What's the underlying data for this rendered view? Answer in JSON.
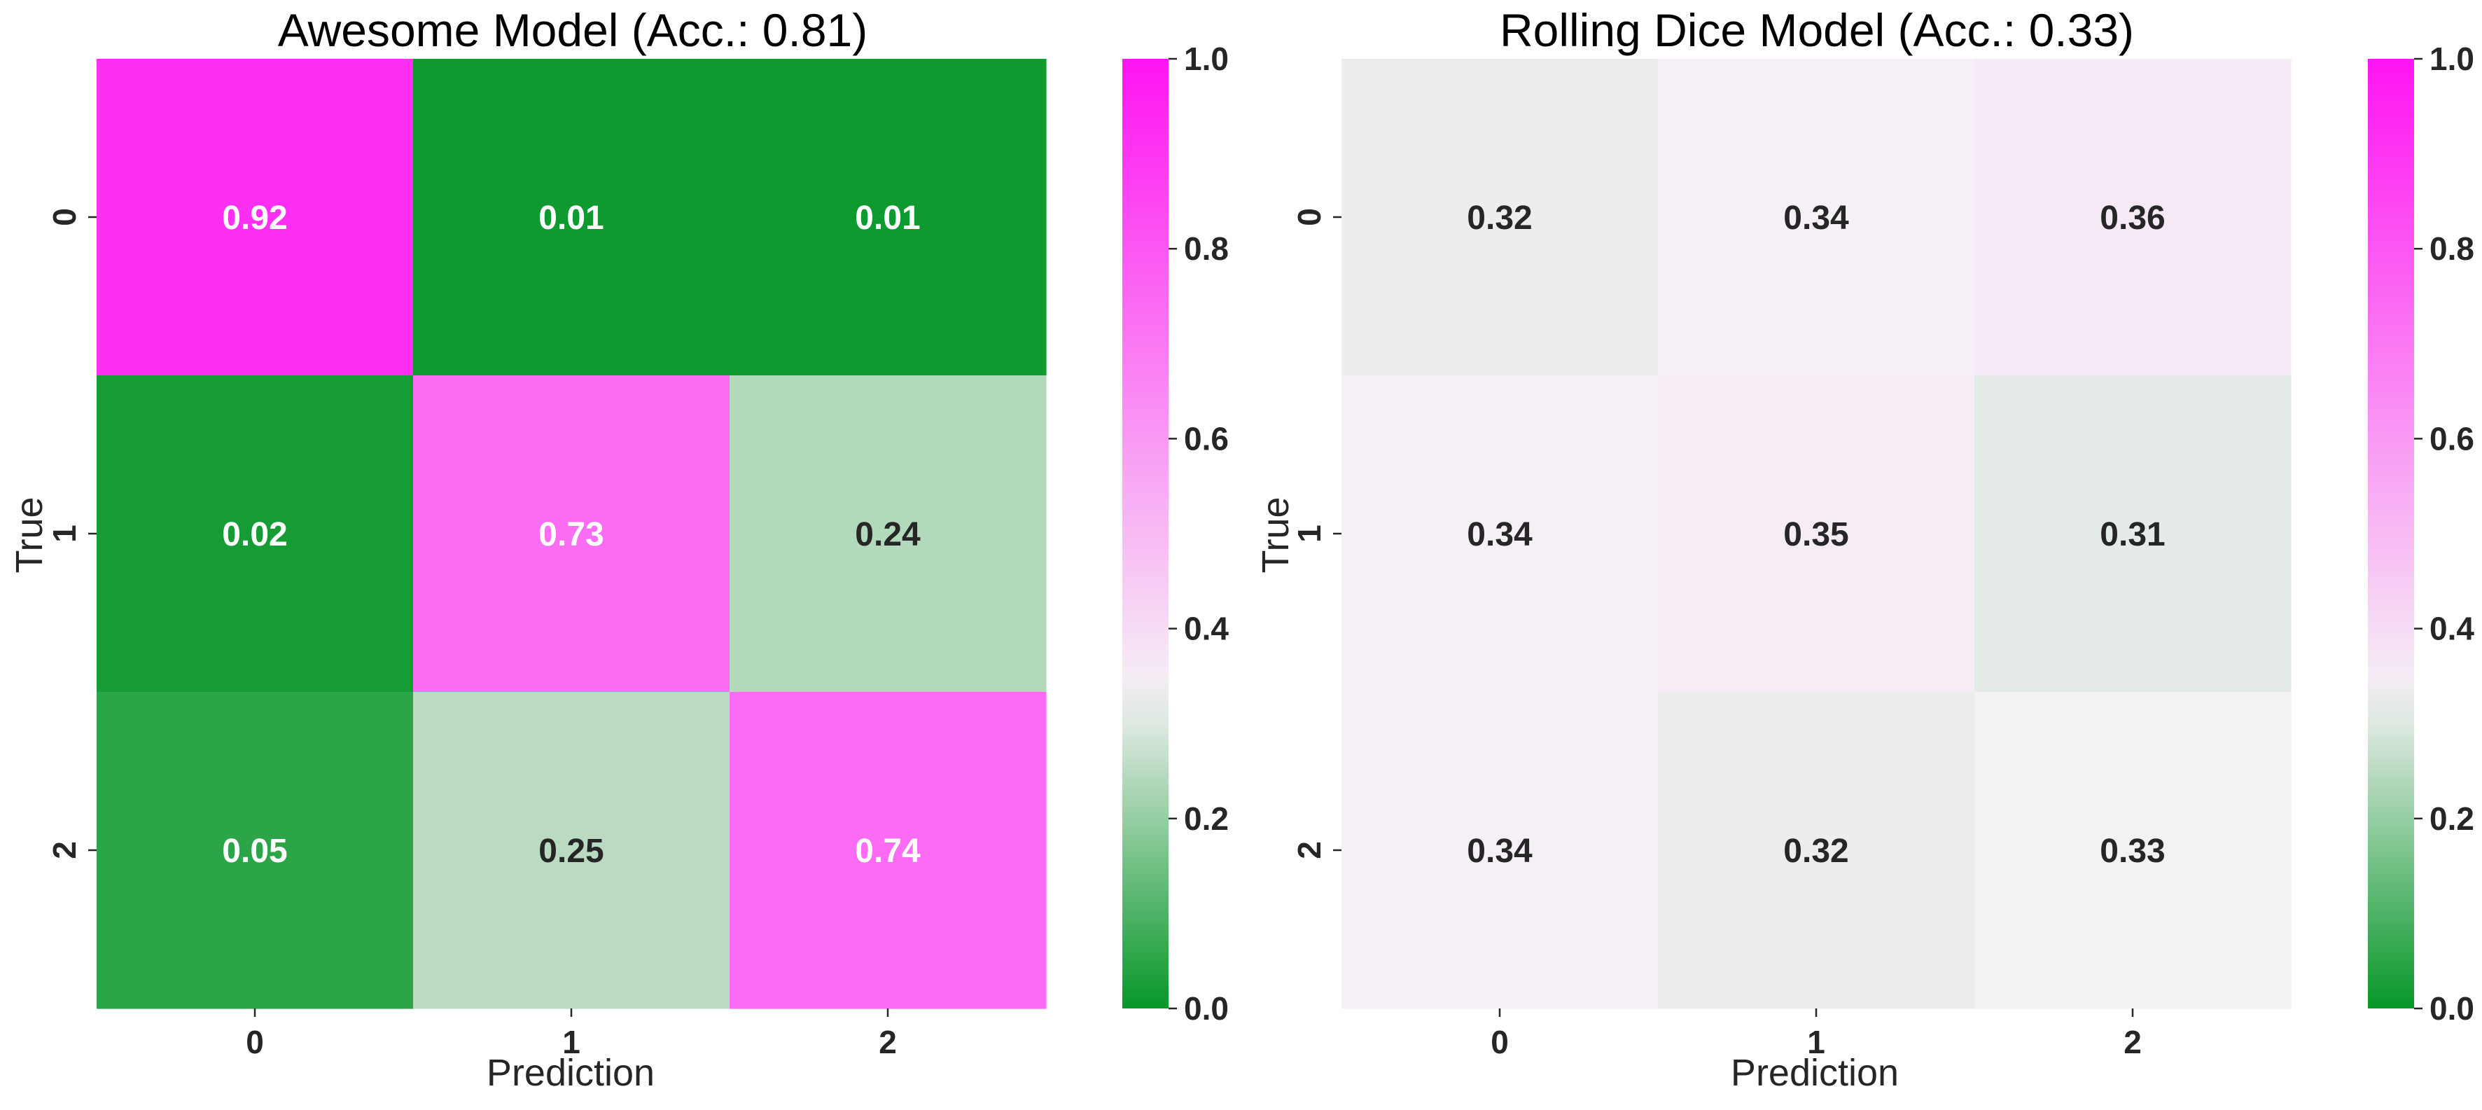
{
  "chart_data": [
    {
      "type": "heatmap",
      "title": "Awesome Model (Acc.: 0.81)",
      "xlabel": "Prediction",
      "ylabel": "True",
      "x_categories": [
        "0",
        "1",
        "2"
      ],
      "y_categories": [
        "0",
        "1",
        "2"
      ],
      "values": [
        [
          0.92,
          0.01,
          0.01
        ],
        [
          0.02,
          0.73,
          0.24
        ],
        [
          0.05,
          0.25,
          0.74
        ]
      ],
      "colorbar": {
        "range": [
          0,
          1
        ],
        "ticks": [
          "0.0",
          "0.2",
          "0.4",
          "0.6",
          "0.8",
          "1.0"
        ]
      }
    },
    {
      "type": "heatmap",
      "title": "Rolling Dice Model (Acc.: 0.33)",
      "xlabel": "Prediction",
      "ylabel": "True",
      "x_categories": [
        "0",
        "1",
        "2"
      ],
      "y_categories": [
        "0",
        "1",
        "2"
      ],
      "values": [
        [
          0.32,
          0.34,
          0.36
        ],
        [
          0.34,
          0.35,
          0.31
        ],
        [
          0.34,
          0.32,
          0.33
        ]
      ],
      "colorbar": {
        "range": [
          0,
          1
        ],
        "ticks": [
          "0.0",
          "0.2",
          "0.4",
          "0.6",
          "0.8",
          "1.0"
        ]
      }
    }
  ],
  "colormap": {
    "low": "#079728",
    "center": "#f5f2f5",
    "high": "#ff14f2",
    "center_value": 0.333
  },
  "label_colors": {
    "dark_background": "#ffffff",
    "light_background": "#262626"
  }
}
